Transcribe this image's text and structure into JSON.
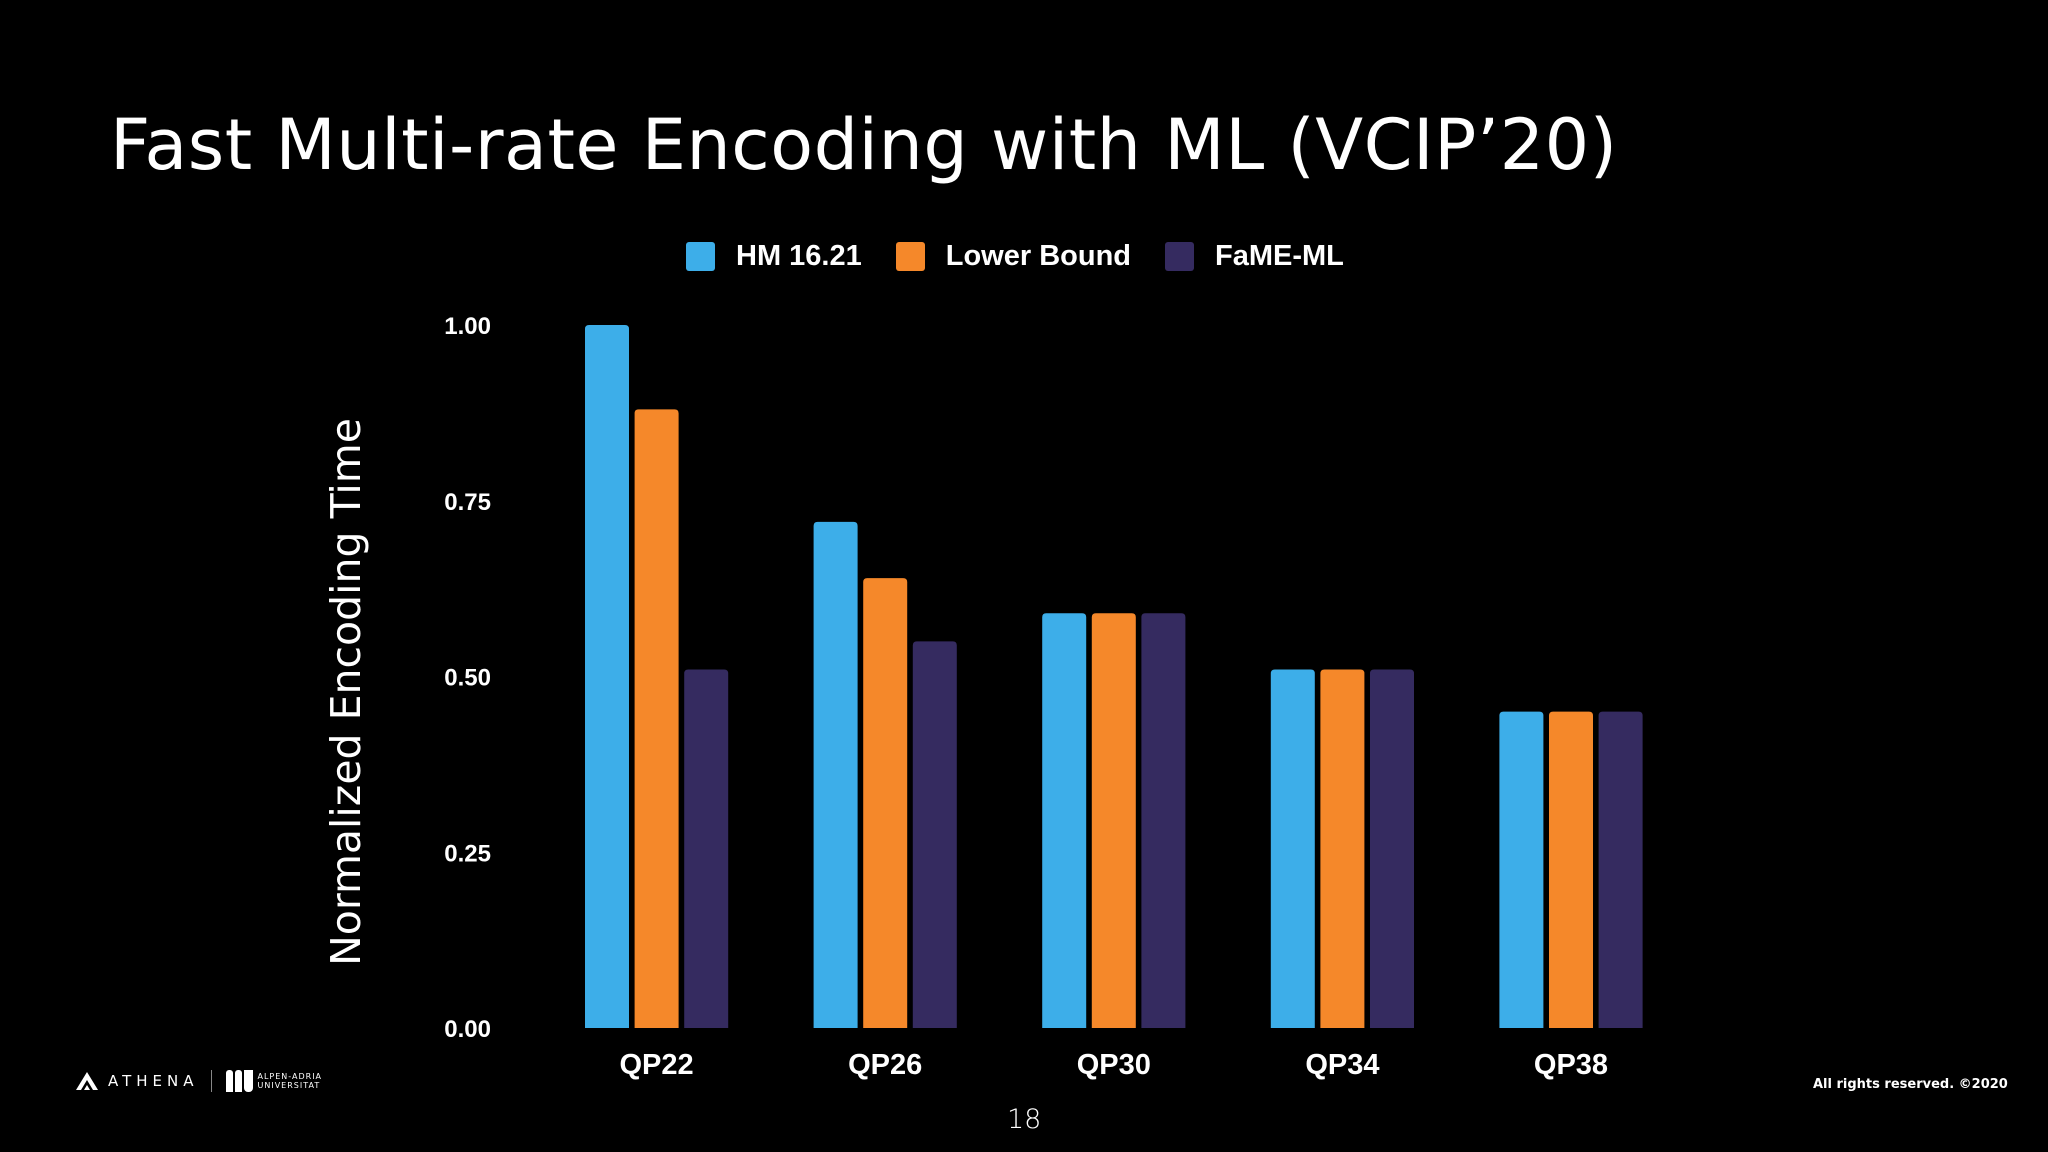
{
  "slide": {
    "title": "Fast Multi-rate Encoding with ML (VCIP’20)",
    "page_number": "18",
    "copyright": "All rights reserved.  ©2020",
    "logos": {
      "athena": "ATHENA",
      "university": "ALPEN-ADRIA UNIVERSITAT"
    }
  },
  "chart_data": {
    "type": "bar",
    "title": "",
    "xlabel": "",
    "ylabel": "Normalized Encoding Time",
    "categories": [
      "QP22",
      "QP26",
      "QP30",
      "QP34",
      "QP38"
    ],
    "ylim": [
      0,
      1.0
    ],
    "yticks": [
      "0.00",
      "0.25",
      "0.50",
      "0.75",
      "1.00"
    ],
    "grid": false,
    "legend_position": "top",
    "series": [
      {
        "name": "HM 16.21",
        "color": "#3daee9",
        "values": [
          1.0,
          0.72,
          0.59,
          0.51,
          0.45
        ]
      },
      {
        "name": "Lower Bound",
        "color": "#f5882a",
        "values": [
          0.88,
          0.64,
          0.59,
          0.51,
          0.45
        ]
      },
      {
        "name": "FaME-ML",
        "color": "#352b60",
        "values": [
          0.51,
          0.55,
          0.59,
          0.51,
          0.45
        ]
      }
    ]
  }
}
